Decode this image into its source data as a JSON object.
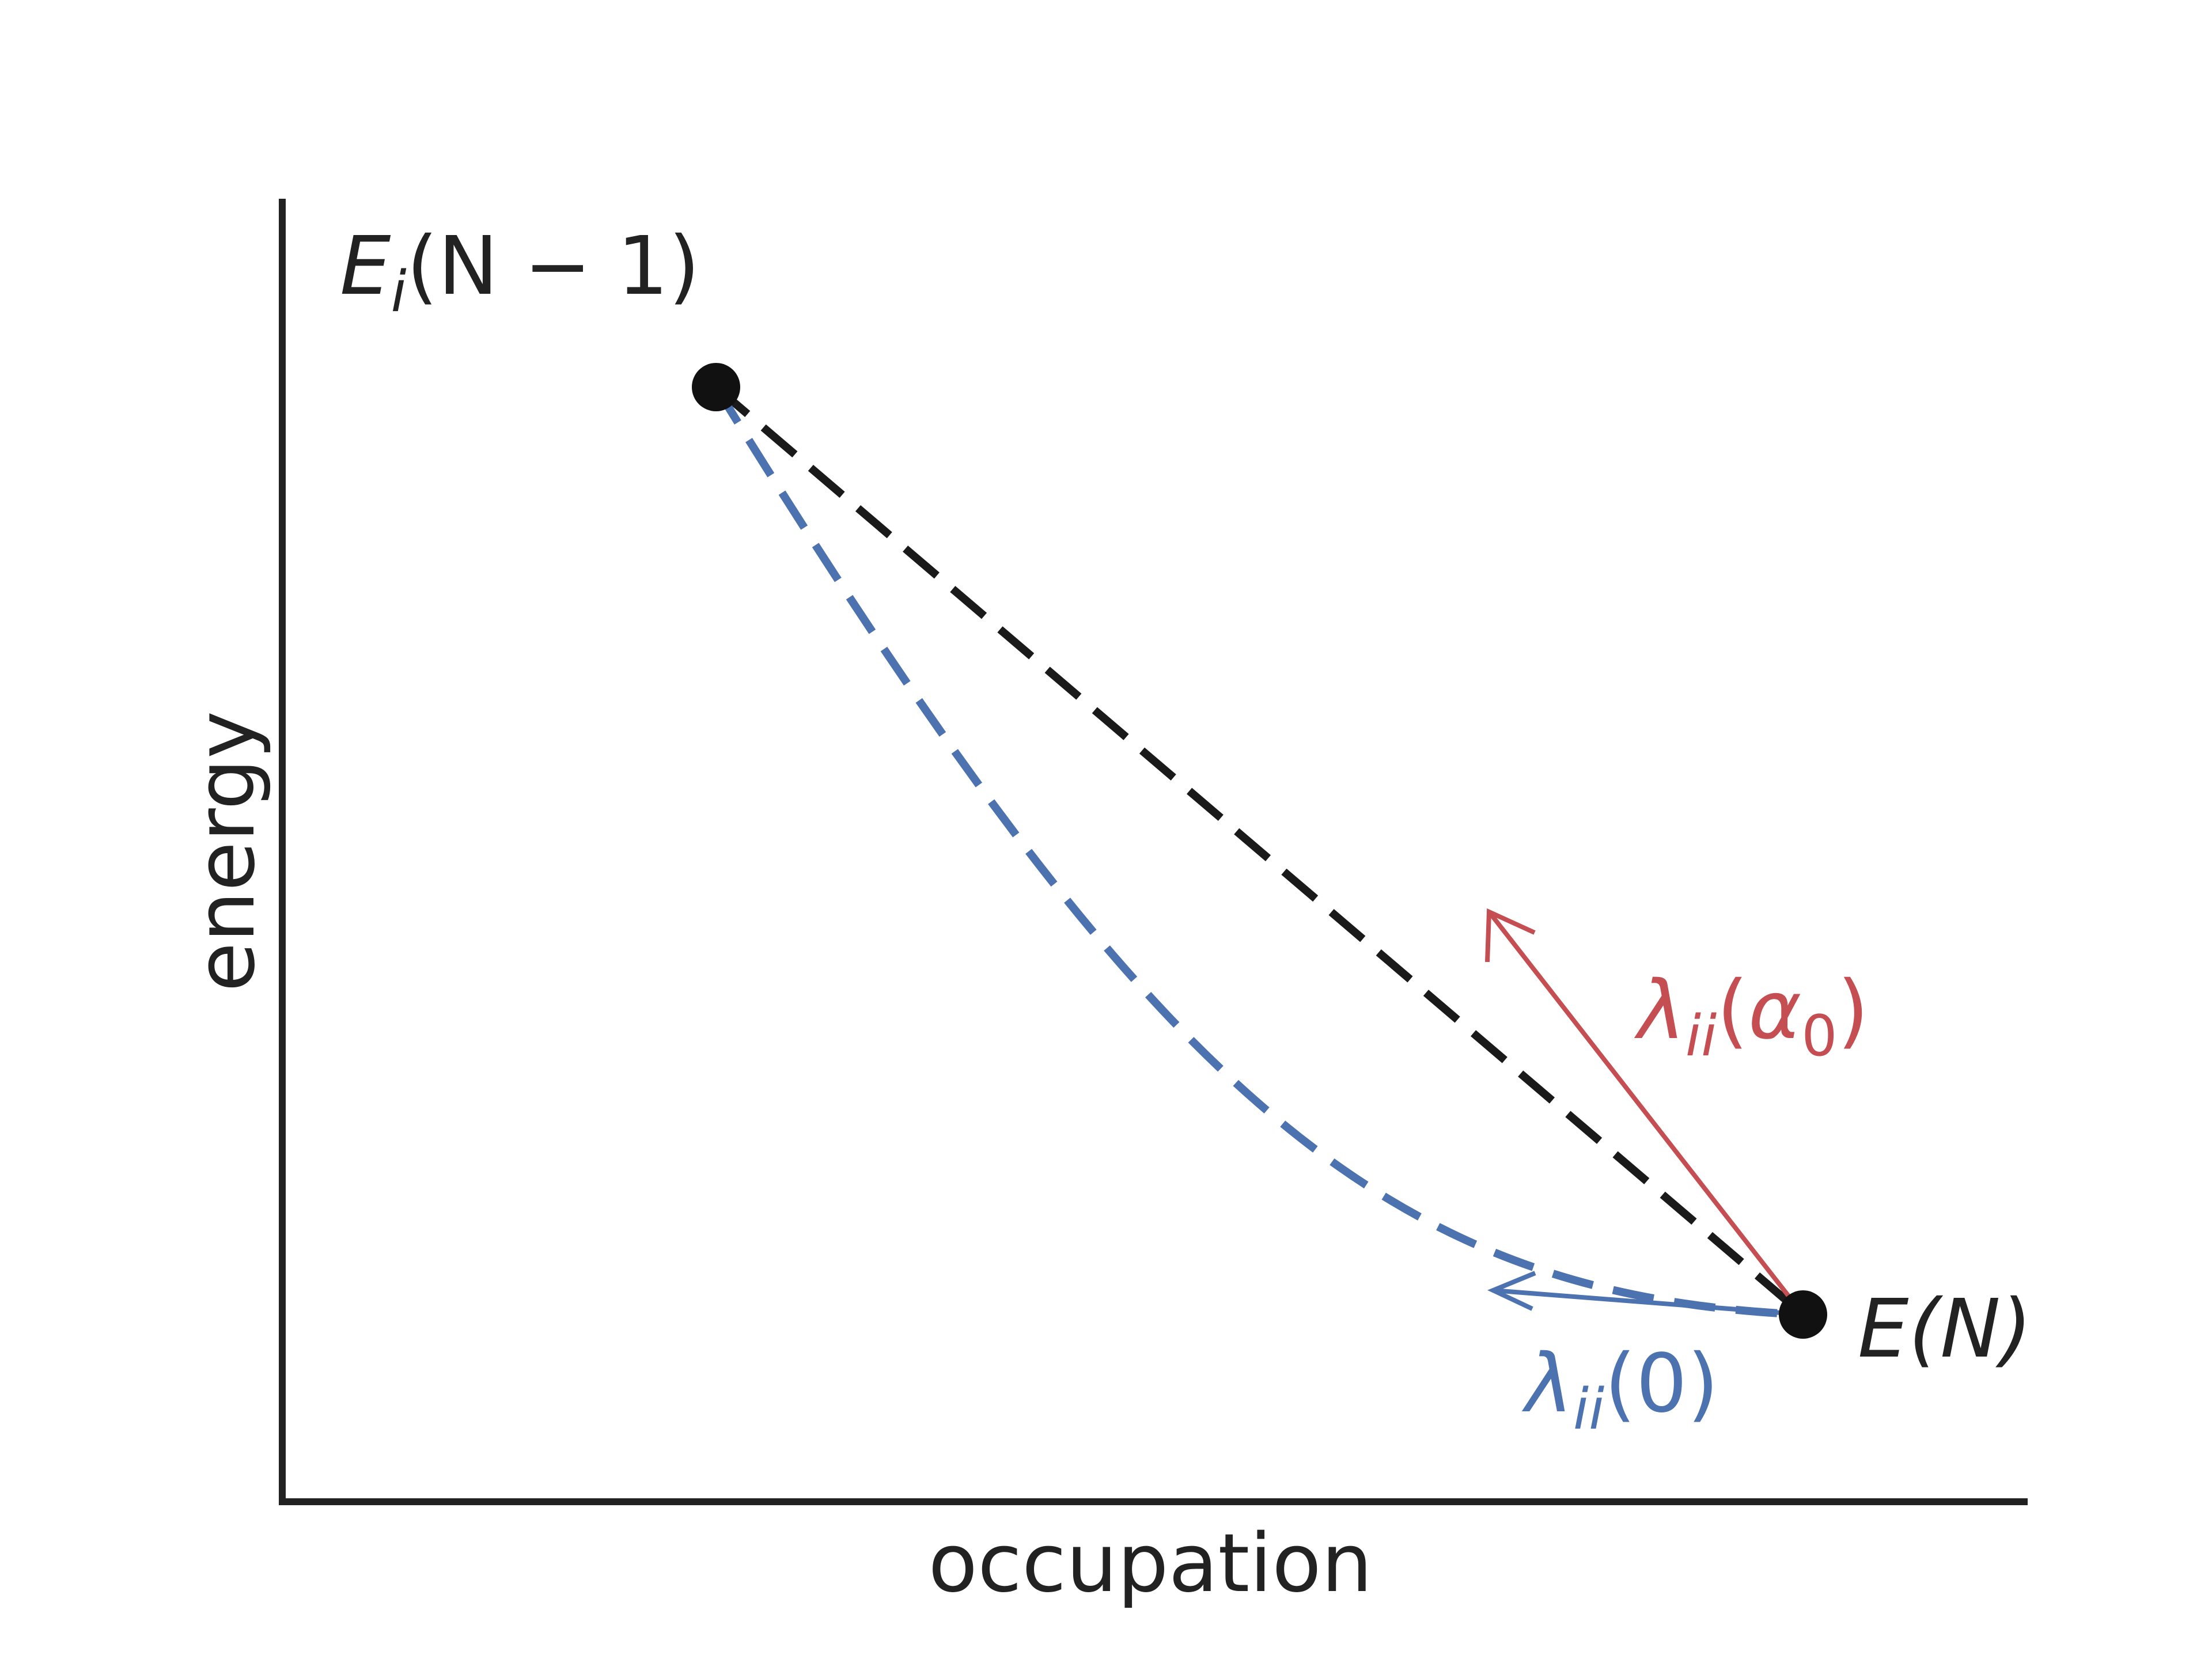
{
  "axes": {
    "xlabel": "occupation",
    "ylabel": "energy",
    "ticks_shown": false,
    "grid": false,
    "spines": [
      "left",
      "bottom"
    ]
  },
  "points": {
    "upper_label": {
      "base": "E",
      "sub": "i",
      "rest": "(N − 1)"
    },
    "lower_label": {
      "base": "E",
      "rest": "(N)"
    }
  },
  "curves": {
    "linear": {
      "style": "dashed",
      "color": "#1a1a1a"
    },
    "convex": {
      "style": "dashed",
      "color": "#4c72b0"
    }
  },
  "arrows": {
    "red": {
      "label_base": "λ",
      "label_sub": "ii",
      "label_arg": "α",
      "label_arg_sub": "0",
      "color": "#c44e52"
    },
    "blue": {
      "label_base": "λ",
      "label_sub": "ii",
      "label_arg": "0",
      "color": "#4c72b0"
    }
  },
  "colors": {
    "axis": "#222222",
    "point": "#111111",
    "background": "#ffffff"
  }
}
